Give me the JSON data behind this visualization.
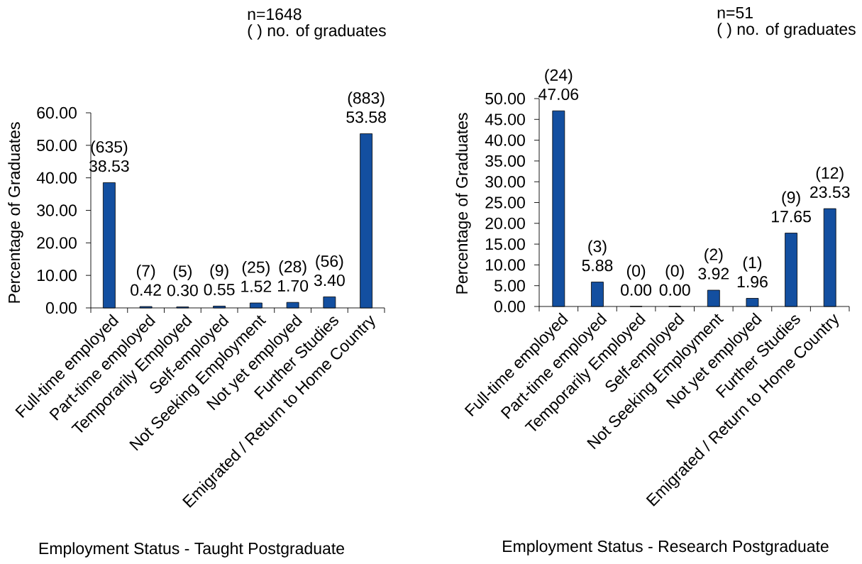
{
  "chart_data": [
    {
      "type": "bar",
      "xlabel": "Employment Status - Taught Postgraduate",
      "ylabel": "Percentage of Graduates",
      "annotations": [
        "n=1648",
        "( ) no. of graduates"
      ],
      "categories": [
        "Full-time employed",
        "Part-time employed",
        "Temporarily Employed",
        "Self-employed",
        "Not Seeking Employment",
        "Not yet employed",
        "Further Studies",
        "Emigrated / Return to Home Country"
      ],
      "values": [
        38.53,
        0.42,
        0.3,
        0.55,
        1.52,
        1.7,
        3.4,
        53.58
      ],
      "color": "#134fa0",
      "value_labels": [
        "(635) 38.53",
        "(7) 0.42",
        "(5) 0.30",
        "(9) 0.55",
        "(25) 1.52",
        "(28) 1.70",
        "(56) 3.40",
        "(883) 53.58"
      ],
      "ylim": [
        0,
        60
      ],
      "yticks": [
        {
          "value": 0,
          "label": "0.00"
        },
        {
          "value": 10,
          "label": "10.00"
        },
        {
          "value": 20,
          "label": "20.00"
        },
        {
          "value": 30,
          "label": "30.00"
        },
        {
          "value": 40,
          "label": "40.00"
        },
        {
          "value": 50,
          "label": "50.00"
        },
        {
          "value": 60,
          "label": "60.00"
        }
      ]
    },
    {
      "type": "bar",
      "xlabel": "Employment Status - Research Postgraduate",
      "ylabel": "Percentage of Graduates",
      "annotations": [
        "n=51",
        "( ) no. of graduates"
      ],
      "categories": [
        "Full-time employed",
        "Part-time employed",
        "Temporarily Employed",
        "Self-employed",
        "Not Seeking Employment",
        "Not yet employed",
        "Further Studies",
        "Emigrated / Return to Home Country"
      ],
      "values": [
        47.06,
        5.88,
        0.0,
        0.0,
        3.92,
        1.96,
        17.65,
        23.53
      ],
      "color": "#134fa0",
      "value_labels": [
        "(24) 47.06",
        "(3) 5.88",
        "(0) 0.00",
        "(0) 0.00",
        "(2) 3.92",
        "(1) 1.96",
        "(9) 17.65",
        "(12) 23.53"
      ],
      "ylim": [
        0,
        50
      ],
      "yticks": [
        {
          "value": 0,
          "label": "0.00"
        },
        {
          "value": 5,
          "label": "5.00"
        },
        {
          "value": 10,
          "label": "10.00"
        },
        {
          "value": 15,
          "label": "15.00"
        },
        {
          "value": 20,
          "label": "20.00"
        },
        {
          "value": 25,
          "label": "25.00"
        },
        {
          "value": 30,
          "label": "30.00"
        },
        {
          "value": 35,
          "label": "35.00"
        },
        {
          "value": 40,
          "label": "40.00"
        },
        {
          "value": 45,
          "label": "45.00"
        },
        {
          "value": 50,
          "label": "50.00"
        }
      ]
    }
  ]
}
